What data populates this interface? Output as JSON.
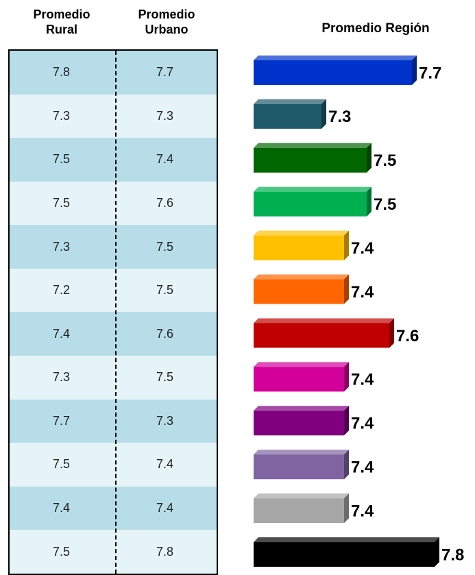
{
  "table": {
    "headers": [
      "Promedio Rural",
      "Promedio Urbano"
    ],
    "rows": [
      [
        7.8,
        7.7
      ],
      [
        7.3,
        7.3
      ],
      [
        7.5,
        7.4
      ],
      [
        7.5,
        7.6
      ],
      [
        7.3,
        7.5
      ],
      [
        7.2,
        7.5
      ],
      [
        7.4,
        7.6
      ],
      [
        7.3,
        7.5
      ],
      [
        7.7,
        7.3
      ],
      [
        7.5,
        7.4
      ],
      [
        7.4,
        7.4
      ],
      [
        7.5,
        7.8
      ]
    ]
  },
  "chart_data": {
    "type": "bar",
    "orientation": "horizontal",
    "title": "Promedio Región",
    "values": [
      7.7,
      7.3,
      7.5,
      7.5,
      7.4,
      7.4,
      7.6,
      7.4,
      7.4,
      7.4,
      7.4,
      7.8
    ],
    "colors": [
      "#0033cc",
      "#1f5a6a",
      "#006600",
      "#00b050",
      "#ffc000",
      "#ff6600",
      "#c00000",
      "#d4009a",
      "#800080",
      "#8064a2",
      "#a6a6a6",
      "#000000"
    ],
    "xlim": [
      7,
      7.9
    ]
  }
}
